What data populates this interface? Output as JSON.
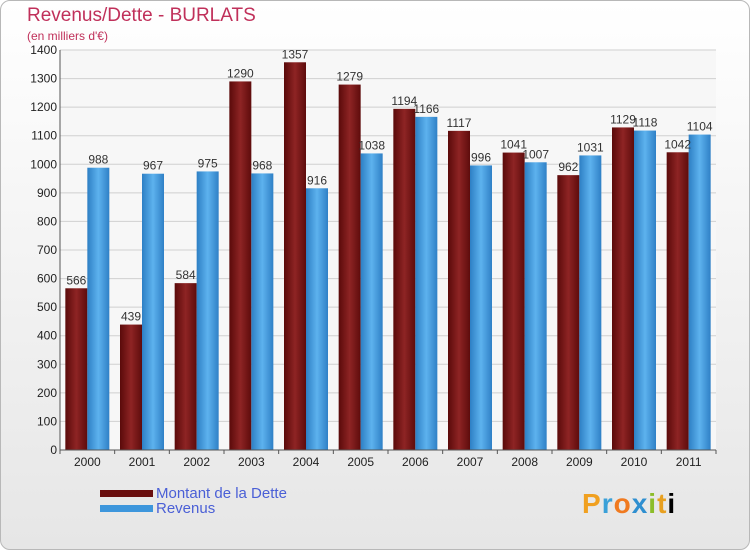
{
  "header": {
    "title": "Revenus/Dette - BURLATS",
    "subtitle": "(en milliers d'€)"
  },
  "chart_data": {
    "type": "bar",
    "title": "Revenus/Dette - BURLATS",
    "ylabel": "(en milliers d'€)",
    "xlabel": "",
    "ylim": [
      0,
      1400
    ],
    "yticks": [
      0,
      100,
      200,
      300,
      400,
      500,
      600,
      700,
      800,
      900,
      1000,
      1100,
      1200,
      1300,
      1400
    ],
    "grid": true,
    "legend_position": "bottom-left",
    "categories": [
      "2000",
      "2001",
      "2002",
      "2003",
      "2004",
      "2005",
      "2006",
      "2007",
      "2008",
      "2009",
      "2010",
      "2011"
    ],
    "series": [
      {
        "name": "Montant de la Dette",
        "color": "#8b1a1a",
        "values": [
          566,
          439,
          584,
          1290,
          1357,
          1279,
          1194,
          1117,
          1041,
          962,
          1129,
          1042
        ]
      },
      {
        "name": "Revenus",
        "color": "#4aa3e6",
        "values": [
          988,
          967,
          975,
          968,
          916,
          1038,
          1166,
          996,
          1007,
          1031,
          1118,
          1104
        ]
      }
    ]
  },
  "logo": {
    "letters": [
      "P",
      "r",
      "o",
      "x",
      "i",
      "t",
      "i"
    ]
  }
}
